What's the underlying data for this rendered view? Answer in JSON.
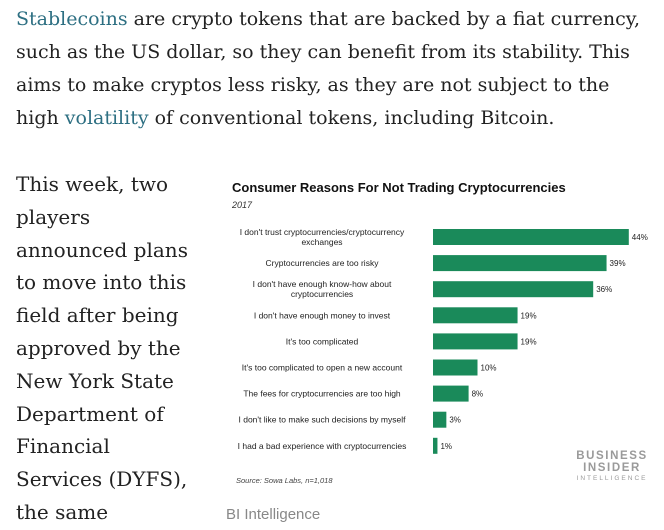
{
  "intro": {
    "link1": "Stablecoins",
    "text1": " are crypto tokens that are backed by a fiat currency, such as the US dollar, so they can benefit from its stability. This aims to make cryptos less risky, as they are not subject to the high ",
    "link2": "volatility",
    "text2": " of conventional tokens, including Bitcoin."
  },
  "body_lines": [
    "This week, two",
    "players",
    "announced plans",
    "to move into this",
    "field after being",
    "approved by the",
    "New York State",
    "Department of",
    "Financial",
    "Services (DYFS),",
    "the same"
  ],
  "chart": {
    "source": "Source: Sowa Labs, n=1,018",
    "bar_color": "#1a8a5a",
    "logo": {
      "line1": "BUSINESS",
      "line2": "INSIDER",
      "line3": "INTELLIGENCE"
    }
  },
  "chart_data": {
    "type": "bar",
    "orientation": "horizontal",
    "title": "Consumer Reasons For Not Trading Cryptocurrencies",
    "subtitle": "2017",
    "categories": [
      [
        "I don't trust cryptocurrencies/cryptocurrency",
        "exchanges"
      ],
      [
        "Cryptocurrencies are too risky"
      ],
      [
        "I don't have enough know-how about",
        "cryptocurrencies"
      ],
      [
        "I don't have enough money to invest"
      ],
      [
        "It's too complicated"
      ],
      [
        "It's too complicated to open a new account"
      ],
      [
        "The fees for cryptocurrencies are too high"
      ],
      [
        "I don't like to make such decisions by myself"
      ],
      [
        "I had a bad experience with cryptocurrencies"
      ]
    ],
    "values": [
      44,
      39,
      36,
      19,
      19,
      10,
      8,
      3,
      1
    ],
    "data_labels": [
      "44%",
      "39%",
      "36%",
      "19%",
      "19%",
      "10%",
      "8%",
      "3%",
      "1%"
    ],
    "unit": "%",
    "grid": false
  },
  "credit": "BI Intelligence"
}
